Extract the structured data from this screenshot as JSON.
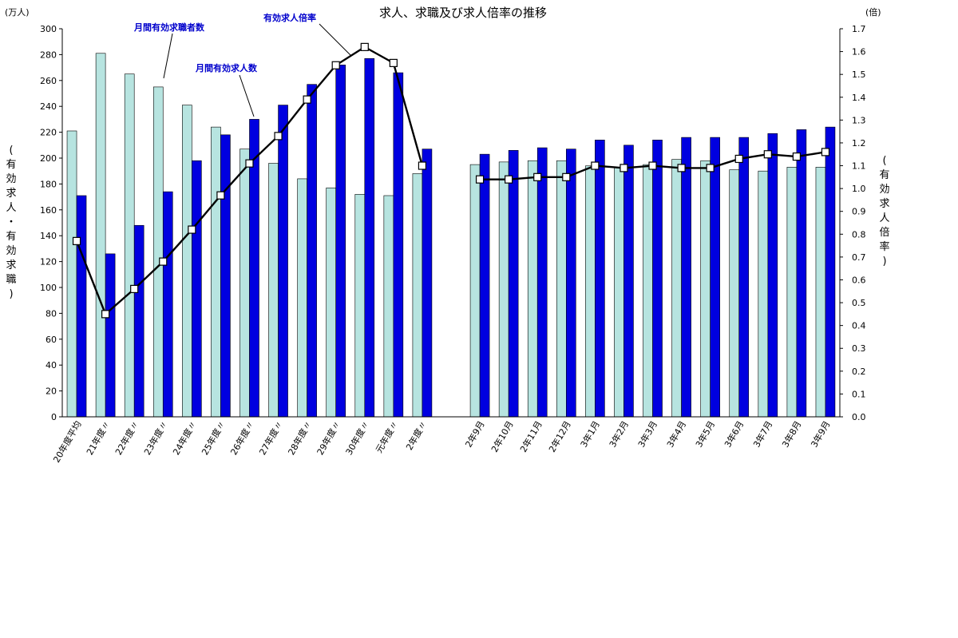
{
  "chart_data": {
    "type": "bar",
    "title": "求人、求職及び求人倍率の推移",
    "left_unit": "(万人)",
    "right_unit": "(倍)",
    "left_axis_label": [
      "(",
      "有",
      "効",
      "求",
      "人",
      "・",
      "有",
      "効",
      "求",
      "職",
      ")"
    ],
    "right_axis_label": [
      "(",
      "有",
      "効",
      "求",
      "人",
      "倍",
      "率",
      ")"
    ],
    "left_ylim": [
      0,
      300
    ],
    "left_ticks": [
      "0",
      "20",
      "40",
      "60",
      "80",
      "100",
      "120",
      "140",
      "160",
      "180",
      "200",
      "220",
      "240",
      "260",
      "280",
      "300"
    ],
    "right_ylim": [
      0,
      1.7
    ],
    "right_ticks": [
      "0.0",
      "0.1",
      "0.2",
      "0.3",
      "0.4",
      "0.5",
      "0.6",
      "0.7",
      "0.8",
      "0.9",
      "1.0",
      "1.1",
      "1.2",
      "1.3",
      "1.4",
      "1.5",
      "1.6",
      "1.7"
    ],
    "categories": [
      "20年度平均",
      "21年度〃",
      "22年度〃",
      "23年度〃",
      "24年度〃",
      "25年度〃",
      "26年度〃",
      "27年度〃",
      "28年度〃",
      "29年度〃",
      "30年度〃",
      "元年度〃",
      "2年度〃",
      "",
      "2年9月",
      "2年10月",
      "2年11月",
      "2年12月",
      "3年1月",
      "3年2月",
      "3年3月",
      "3年4月",
      "3年5月",
      "3年6月",
      "3年7月",
      "3年8月",
      "3年9月"
    ],
    "series": [
      {
        "name": "月間有効求職者数",
        "axis": "left",
        "color": "#b7e4e0",
        "values": [
          221,
          281,
          265,
          255,
          241,
          224,
          207,
          196,
          184,
          177,
          172,
          171,
          188,
          null,
          195,
          197,
          198,
          198,
          194,
          193,
          195,
          199,
          198,
          191,
          190,
          193,
          193
        ]
      },
      {
        "name": "月間有効求人数",
        "axis": "left",
        "color": "#0000e0",
        "values": [
          171,
          126,
          148,
          174,
          198,
          218,
          230,
          241,
          257,
          272,
          277,
          266,
          207,
          null,
          203,
          206,
          208,
          207,
          214,
          210,
          214,
          216,
          216,
          216,
          219,
          222,
          224
        ]
      },
      {
        "name": "有効求人倍率",
        "axis": "right",
        "type": "line",
        "color": "#000000",
        "values": [
          0.77,
          0.45,
          0.56,
          0.68,
          0.82,
          0.97,
          1.11,
          1.23,
          1.39,
          1.54,
          1.62,
          1.55,
          1.1,
          null,
          1.04,
          1.04,
          1.05,
          1.05,
          1.1,
          1.09,
          1.1,
          1.09,
          1.09,
          1.13,
          1.15,
          1.14,
          1.16
        ]
      }
    ]
  }
}
